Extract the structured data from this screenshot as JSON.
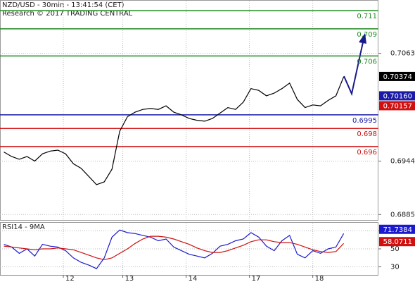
{
  "chart_data": [
    {
      "type": "line",
      "title": "NZD/USD - 30min - 13:41:54 (CET)",
      "subtitle": "Research © 2017 TRADING CENTRAL",
      "x": [
        0,
        1,
        2,
        3,
        4,
        5,
        6,
        7,
        8,
        9,
        10,
        11,
        12,
        13,
        14,
        15,
        16,
        17,
        18,
        19,
        20,
        21,
        22,
        23,
        24,
        25,
        26,
        27,
        28,
        29,
        30,
        31,
        32,
        33,
        34,
        35,
        36,
        37,
        38,
        39,
        40,
        41,
        42,
        43,
        44
      ],
      "xlim": [
        -0.5,
        48.5
      ],
      "xticks": [
        {
          "value": 7.7,
          "label": "12"
        },
        {
          "value": 15.4,
          "label": "13"
        },
        {
          "value": 23.6,
          "label": "14"
        },
        {
          "value": 31.8,
          "label": "17"
        },
        {
          "value": 40.0,
          "label": "18"
        }
      ],
      "ylim": [
        0.6879,
        0.7121
      ],
      "yticks": [
        0.6885,
        0.6944,
        0.7063
      ],
      "grid": true,
      "series": [
        {
          "color": "#000000",
          "values": [
            0.6954,
            0.6949,
            0.6946,
            0.6949,
            0.6944,
            0.6952,
            0.6955,
            0.6956,
            0.6952,
            0.6941,
            0.6936,
            0.6927,
            0.6918,
            0.6921,
            0.6935,
            0.6977,
            0.6993,
            0.6998,
            0.7001,
            0.7002,
            0.7001,
            0.7005,
            0.6998,
            0.6995,
            0.6991,
            0.6989,
            0.6988,
            0.6991,
            0.6997,
            0.7003,
            0.7001,
            0.7009,
            0.7024,
            0.7022,
            0.7016,
            0.7019,
            0.7024,
            0.703,
            0.7012,
            0.7003,
            0.7006,
            0.7005,
            0.7011,
            0.7016,
            0.7037
          ]
        }
      ],
      "levels": [
        {
          "value": 0.711,
          "color": "#1f8a1f"
        },
        {
          "value": 0.709,
          "color": "#1f8a1f"
        },
        {
          "value": 0.706,
          "color": "#1f8a1f"
        },
        {
          "value": 0.6995,
          "color": "#1a1aa6"
        },
        {
          "value": 0.698,
          "color": "#d01010"
        },
        {
          "value": 0.696,
          "color": "#d01010"
        }
      ],
      "markers": [
        {
          "value": 0.70374,
          "color": "#000000"
        },
        {
          "value": 0.7016,
          "label": "0.70160",
          "color": "#1a1aa6"
        },
        {
          "value": 0.70157,
          "color": "#d01010"
        }
      ]
    },
    {
      "type": "line",
      "title": "RSI14 - 9MA",
      "ylim": [
        21,
        79
      ],
      "yticks": [
        30,
        50,
        70
      ],
      "grid": true,
      "series": [
        {
          "color": "#1a1acc",
          "values": [
            55,
            52,
            45,
            50,
            42,
            55,
            53,
            52,
            48,
            40,
            35,
            32,
            28,
            40,
            63,
            71,
            68,
            67,
            65,
            63,
            59,
            61,
            52,
            48,
            44,
            42,
            40,
            45,
            53,
            55,
            59,
            61,
            68,
            63,
            53,
            48,
            59,
            65,
            44,
            40,
            48,
            45,
            50,
            52,
            67
          ]
        },
        {
          "color": "#d01010",
          "values": [
            53,
            52,
            51,
            50,
            49,
            50,
            50,
            51,
            50,
            49,
            46,
            43,
            40,
            38,
            40,
            45,
            50,
            56,
            61,
            64,
            64,
            63,
            61,
            58,
            55,
            51,
            48,
            46,
            46,
            48,
            51,
            54,
            58,
            60,
            60,
            58,
            57,
            57,
            55,
            52,
            49,
            47,
            46,
            47,
            56
          ]
        }
      ],
      "markers": [
        {
          "value": 71.7384,
          "color": "#1a1acc"
        },
        {
          "value": 58.0711,
          "color": "#d01010"
        }
      ]
    }
  ]
}
